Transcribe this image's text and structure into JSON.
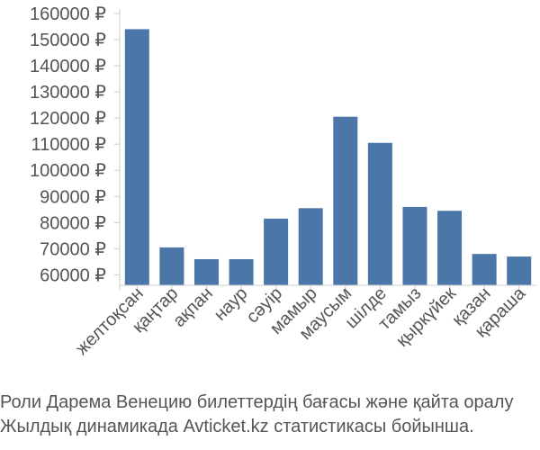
{
  "chart_data": {
    "type": "bar",
    "title": "",
    "xlabel": "",
    "ylabel": "",
    "currency_suffix": " ₽",
    "categories": [
      "желтоқсан",
      "қаңтар",
      "ақпан",
      "наур",
      "сәуір",
      "мамыр",
      "маусым",
      "шілде",
      "тамыз",
      "қыркүйек",
      "қазан",
      "қараша"
    ],
    "values": [
      154000,
      70500,
      66000,
      66000,
      81500,
      85500,
      120500,
      110500,
      86000,
      84500,
      68000,
      67000
    ],
    "yticks": [
      60000,
      70000,
      80000,
      90000,
      100000,
      110000,
      120000,
      130000,
      140000,
      150000,
      160000
    ],
    "ylim": [
      56000,
      160000
    ],
    "grid": false,
    "legend": "none",
    "colors": {
      "bar": "#4a76a8",
      "axis": "#cccccc",
      "text": "#555555"
    }
  },
  "caption": {
    "line1": "Роли Дарема Венецию билеттердің бағасы және қайта оралу",
    "line2": "Жылдық динамикада Avticket.kz статистикасы бойынша."
  }
}
